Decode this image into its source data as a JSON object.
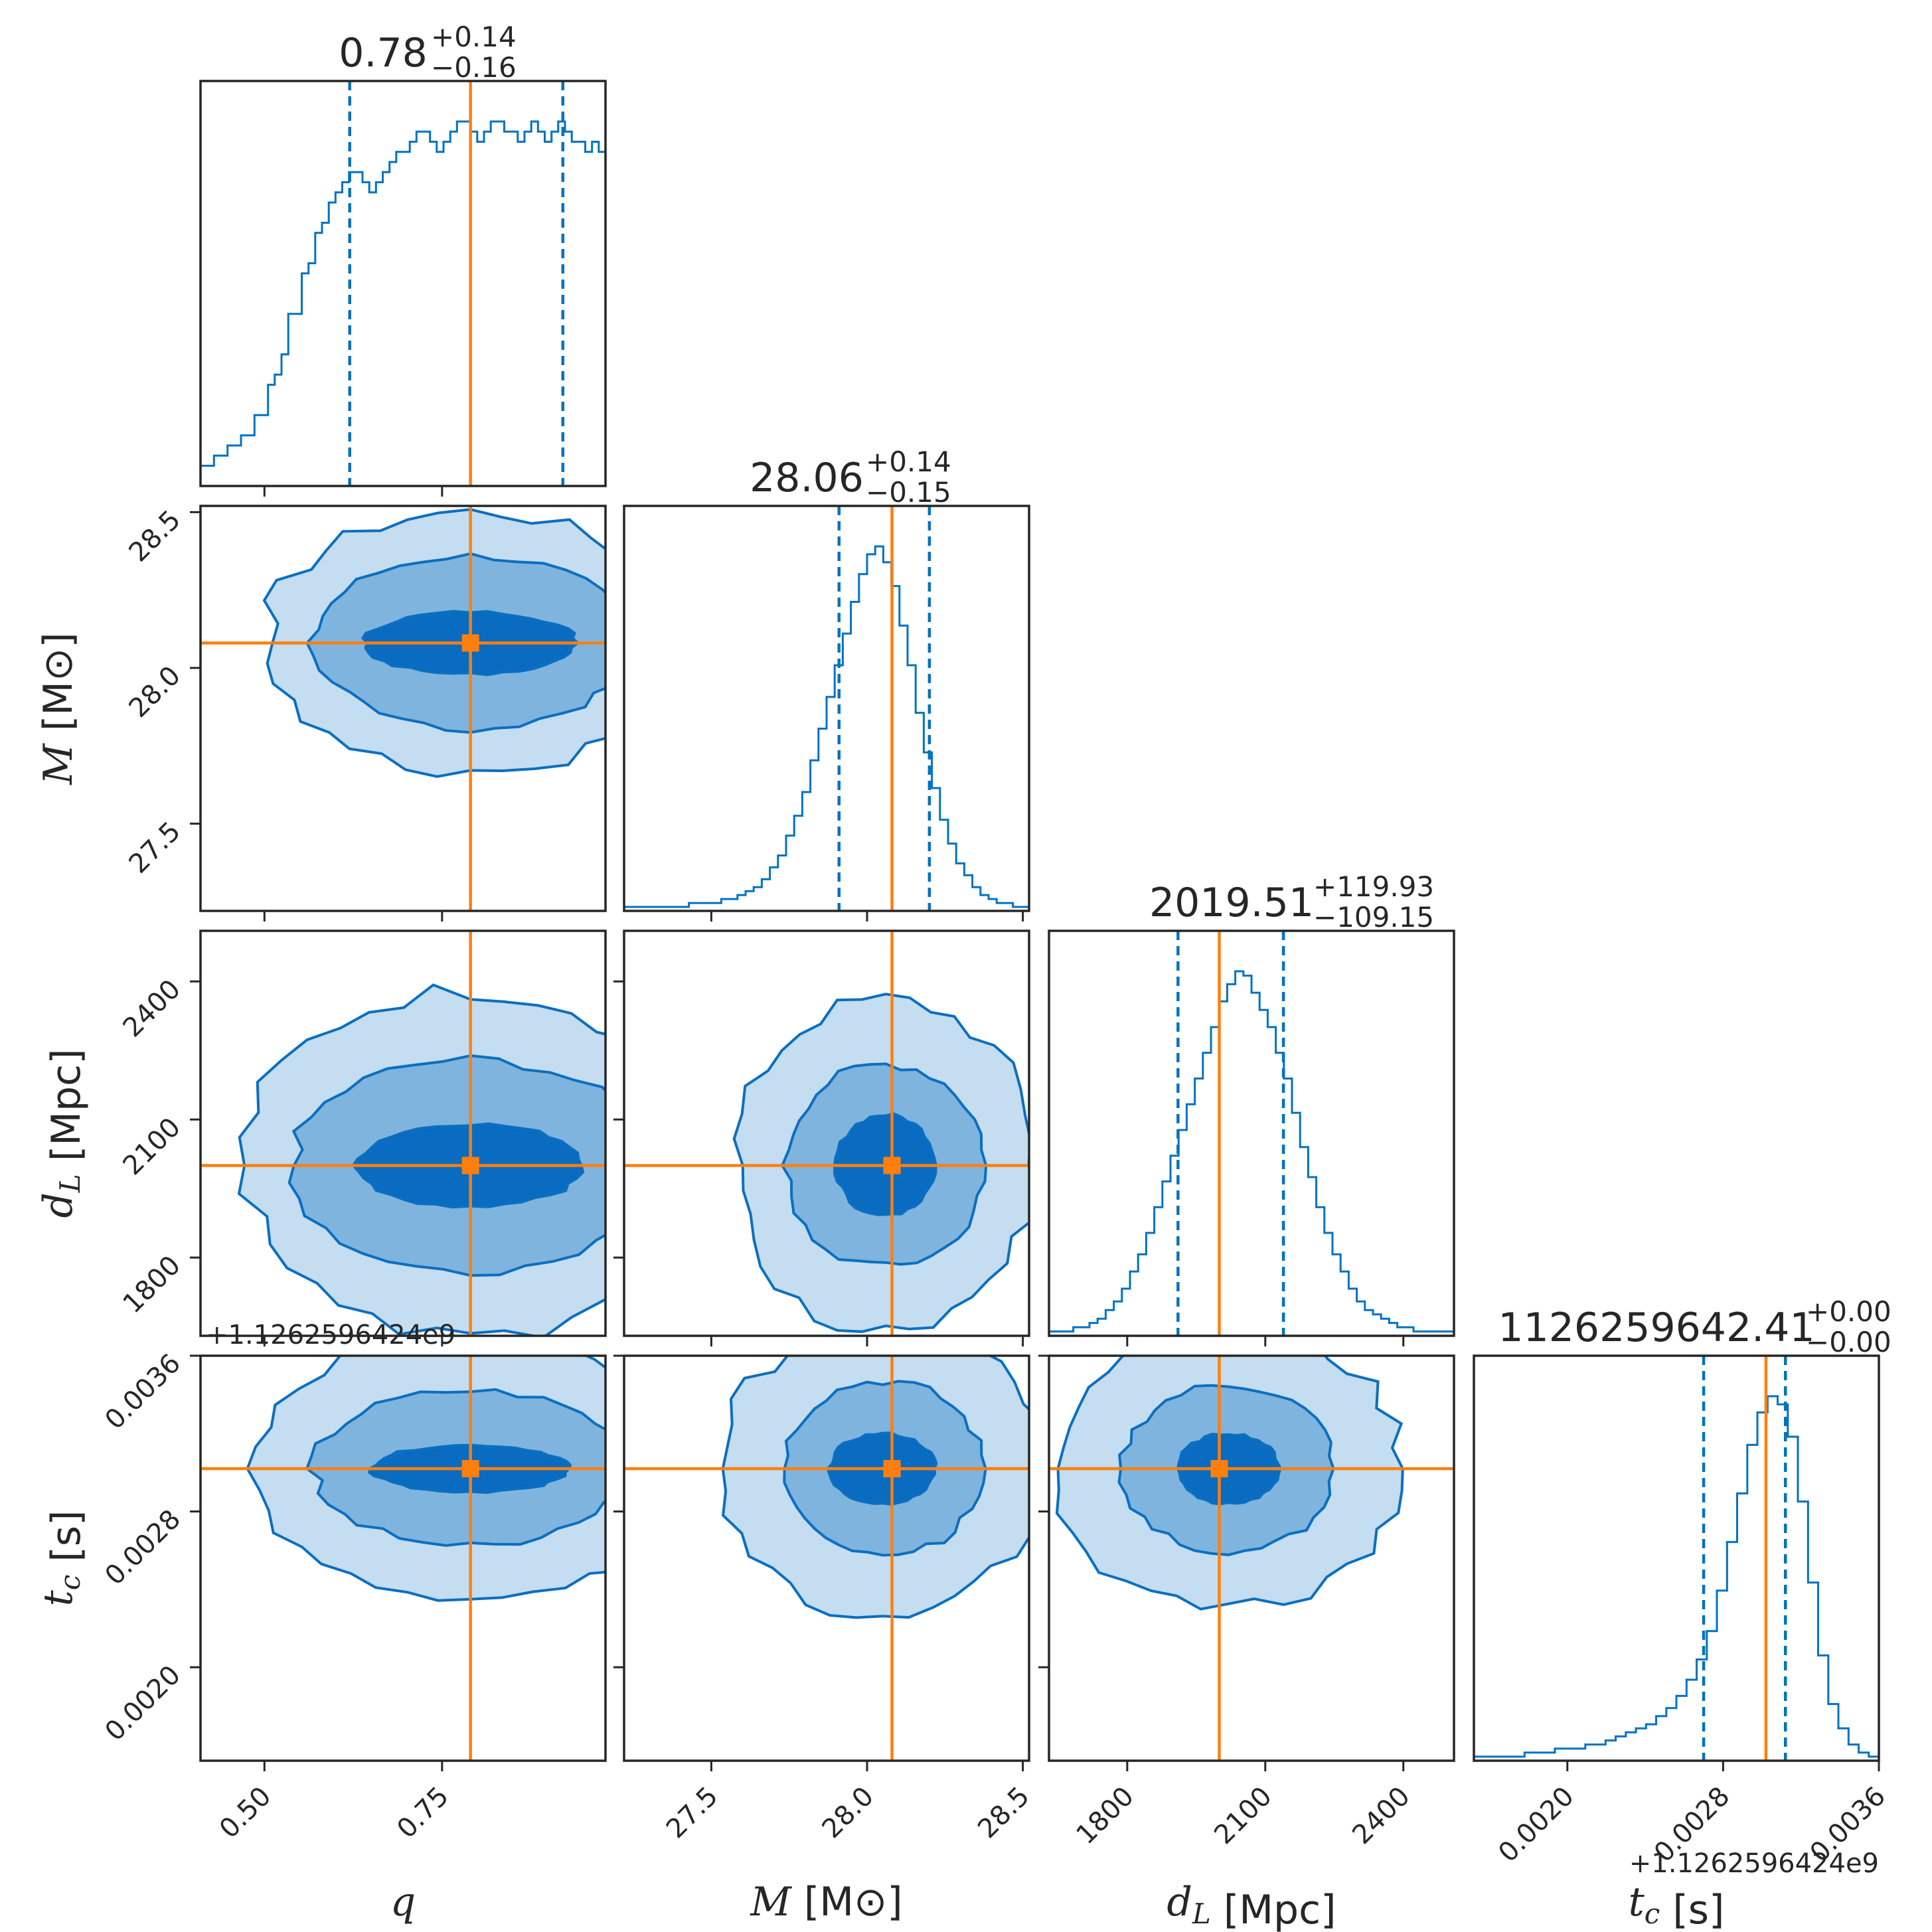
{
  "chart_data": {
    "type": "corner",
    "parameters": [
      {
        "name": "q",
        "label": "q",
        "label_suffix": "",
        "range": [
          0.41,
          0.98
        ],
        "ticks": [
          0.5,
          0.75
        ],
        "tick_labels": [
          "0.50",
          "0.75"
        ],
        "truth": 0.79,
        "median": 0.78,
        "quantiles": [
          0.62,
          0.92
        ],
        "title": "0.78",
        "title_sup": "+0.14",
        "title_sub": "−0.16",
        "offset_label": "",
        "hist_counts": [
          2,
          2,
          3,
          3,
          4,
          4,
          5,
          5,
          7,
          7,
          10,
          11,
          13,
          17,
          17,
          21,
          22,
          25,
          26,
          28,
          29,
          30,
          31,
          31,
          30,
          29,
          30,
          31,
          32,
          33,
          33,
          34,
          35,
          35,
          34,
          33,
          34,
          35,
          36,
          36,
          35,
          34,
          35,
          36,
          36,
          35,
          35,
          34,
          35,
          36,
          35,
          34,
          35,
          36,
          35,
          34,
          34,
          33,
          34,
          33
        ]
      },
      {
        "name": "M",
        "label": "M",
        "label_suffix": "[M⊙]",
        "range": [
          27.22,
          28.52
        ],
        "ticks": [
          27.5,
          28.0,
          28.5
        ],
        "tick_labels": [
          "27.5",
          "28.0",
          "28.5"
        ],
        "truth": 28.08,
        "median": 28.06,
        "quantiles": [
          27.91,
          28.2
        ],
        "title": "28.06",
        "title_sup": "+0.14",
        "title_sub": "−0.15",
        "offset_label": "",
        "hist_counts": [
          1,
          1,
          1,
          1,
          1,
          1,
          1,
          1,
          2,
          2,
          2,
          2,
          3,
          3,
          4,
          5,
          6,
          8,
          11,
          14,
          19,
          24,
          30,
          38,
          46,
          54,
          62,
          70,
          78,
          85,
          90,
          92,
          88,
          82,
          72,
          62,
          50,
          40,
          31,
          23,
          17,
          12,
          9,
          6,
          4,
          3,
          2,
          2,
          1,
          1
        ]
      },
      {
        "name": "d_L",
        "label": "d",
        "label_sub": "L",
        "label_suffix": "[Mpc]",
        "range": [
          1630,
          2510
        ],
        "ticks": [
          1800,
          2100,
          2400
        ],
        "tick_labels": [
          "1800",
          "2100",
          "2400"
        ],
        "truth": 2000,
        "median": 2019.51,
        "quantiles": [
          1910.36,
          2139.44
        ],
        "title": "2019.51",
        "title_sup": "+119.93",
        "title_sub": "−109.15",
        "offset_label": "",
        "hist_counts": [
          1,
          1,
          1,
          2,
          2,
          3,
          4,
          6,
          8,
          11,
          15,
          19,
          24,
          30,
          36,
          42,
          48,
          54,
          60,
          66,
          72,
          78,
          82,
          85,
          84,
          80,
          76,
          72,
          66,
          60,
          52,
          44,
          37,
          30,
          24,
          19,
          15,
          11,
          8,
          6,
          5,
          4,
          3,
          2,
          2,
          1,
          1,
          1,
          1,
          1
        ]
      },
      {
        "name": "t_c",
        "label": "t",
        "label_sub": "c",
        "label_suffix": "[s]",
        "range": [
          0.00152,
          0.0036
        ],
        "ticks": [
          0.002,
          0.0028,
          0.0036
        ],
        "tick_labels": [
          "0.0020",
          "0.0028",
          "0.0036"
        ],
        "truth": 0.00302,
        "median": 0.00302,
        "quantiles": [
          0.0027,
          0.00312
        ],
        "title": "1126259642.41",
        "title_sup": "+0.00",
        "title_sub": "−0.00",
        "offset_label": "+1.1262596424e9",
        "hist_counts": [
          1,
          1,
          1,
          1,
          1,
          2,
          2,
          2,
          3,
          3,
          3,
          4,
          4,
          5,
          6,
          7,
          8,
          9,
          11,
          13,
          16,
          20,
          25,
          32,
          42,
          54,
          66,
          78,
          86,
          90,
          88,
          80,
          64,
          44,
          26,
          14,
          8,
          4,
          2,
          1
        ]
      }
    ],
    "row_offset_label": "+1.1262596424e9"
  }
}
